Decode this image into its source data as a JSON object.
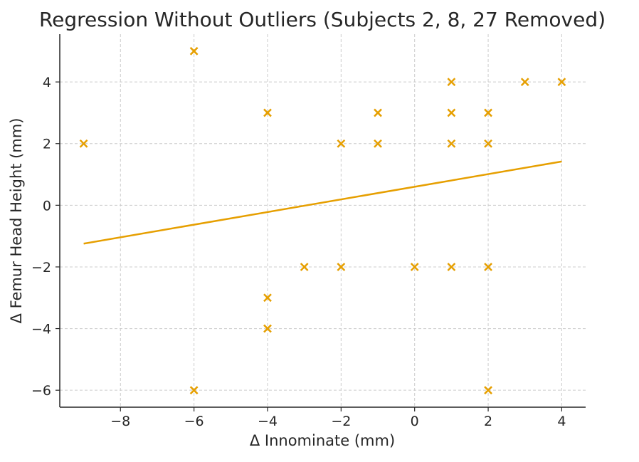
{
  "chart_data": {
    "type": "scatter",
    "title": "Regression Without Outliers (Subjects 2, 8, 27 Removed)",
    "xlabel": "Δ Innominate (mm)",
    "ylabel": "Δ Femur Head Height (mm)",
    "xlim": [
      -9.65,
      4.65
    ],
    "ylim": [
      -6.55,
      5.55
    ],
    "xticks": [
      -8,
      -6,
      -4,
      -2,
      0,
      2,
      4
    ],
    "yticks": [
      -6,
      -4,
      -2,
      0,
      2,
      4
    ],
    "xtick_labels": [
      "−8",
      "−6",
      "−4",
      "−2",
      "0",
      "2",
      "4"
    ],
    "ytick_labels": [
      "−6",
      "−4",
      "−2",
      "0",
      "2",
      "4"
    ],
    "grid": true,
    "color": "#E69F00",
    "marker": "x",
    "points": [
      [
        -9,
        2
      ],
      [
        -6,
        5
      ],
      [
        -6,
        -6
      ],
      [
        -4,
        3
      ],
      [
        -4,
        -3
      ],
      [
        -4,
        -4
      ],
      [
        -3,
        -2
      ],
      [
        -2,
        2
      ],
      [
        -2,
        -2
      ],
      [
        -1,
        3
      ],
      [
        -1,
        2
      ],
      [
        0,
        -2
      ],
      [
        1,
        4
      ],
      [
        1,
        3
      ],
      [
        1,
        2
      ],
      [
        1,
        -2
      ],
      [
        2,
        3
      ],
      [
        2,
        2
      ],
      [
        2,
        -2
      ],
      [
        2,
        -6
      ],
      [
        3,
        4
      ],
      [
        4,
        4
      ]
    ],
    "regression_line": {
      "slope": 0.205,
      "intercept": 0.6,
      "x_range": [
        -9,
        4
      ]
    }
  }
}
